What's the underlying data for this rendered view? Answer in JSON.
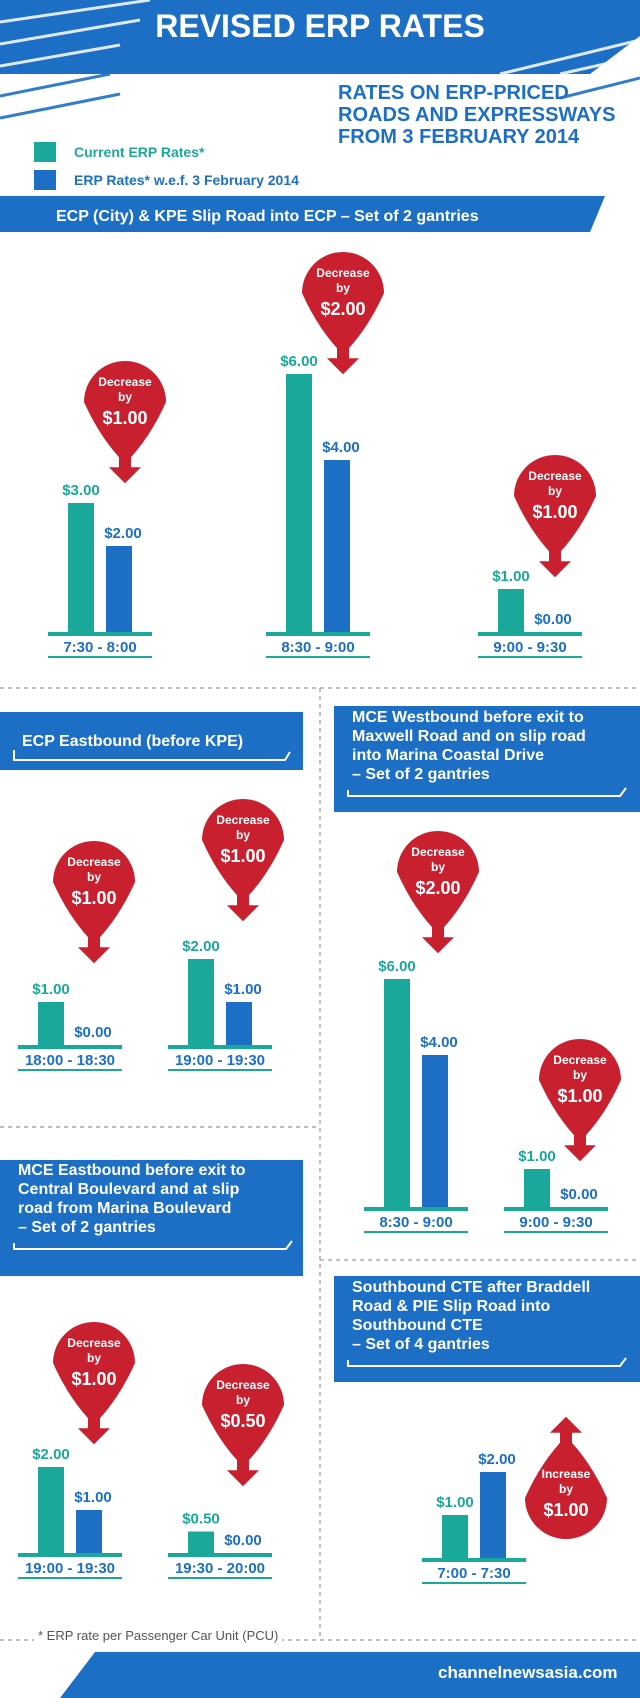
{
  "header": {
    "title": "REVISED ERP RATES",
    "subtitle_lines": [
      "RATES ON ERP-PRICED",
      "ROADS AND EXPRESSWAYS",
      "FROM 3 FEBRUARY 2014"
    ]
  },
  "legend": {
    "current": "Current ERP Rates*",
    "new": "ERP Rates* w.e.f. 3 February 2014"
  },
  "colors": {
    "current": "#1aa89b",
    "new": "#1c6fc4",
    "badge": "#c8202f",
    "banner": "#1c6fc4"
  },
  "chart_data": [
    {
      "type": "bar",
      "title": "ECP (City) & KPE Slip Road into ECP – Set of 2 gantries",
      "unit": "$",
      "categories": [
        "7:30 - 8:00",
        "8:30 - 9:00",
        "9:00 - 9:30"
      ],
      "series": [
        {
          "name": "Current ERP Rates*",
          "values": [
            3.0,
            6.0,
            1.0
          ]
        },
        {
          "name": "ERP Rates* w.e.f. 3 February 2014",
          "values": [
            2.0,
            4.0,
            0.0
          ]
        }
      ],
      "value_labels": {
        "current": [
          "$3.00",
          "$6.00",
          "$1.00"
        ],
        "new": [
          "$2.00",
          "$4.00",
          "$0.00"
        ]
      },
      "annotations": [
        {
          "text": "Decrease",
          "by": "by",
          "amount": "$1.00"
        },
        {
          "text": "Decrease",
          "by": "by",
          "amount": "$2.00"
        },
        {
          "text": "Decrease",
          "by": "by",
          "amount": "$1.00"
        }
      ]
    },
    {
      "type": "bar",
      "title": "ECP Eastbound (before KPE)",
      "unit": "$",
      "categories": [
        "18:00 - 18:30",
        "19:00 - 19:30"
      ],
      "series": [
        {
          "name": "Current ERP Rates*",
          "values": [
            1.0,
            2.0
          ]
        },
        {
          "name": "ERP Rates* w.e.f. 3 February 2014",
          "values": [
            0.0,
            1.0
          ]
        }
      ],
      "value_labels": {
        "current": [
          "$1.00",
          "$2.00"
        ],
        "new": [
          "$0.00",
          "$1.00"
        ]
      },
      "annotations": [
        {
          "text": "Decrease",
          "by": "by",
          "amount": "$1.00"
        },
        {
          "text": "Decrease",
          "by": "by",
          "amount": "$1.00"
        }
      ]
    },
    {
      "type": "bar",
      "title_lines": [
        "MCE Westbound before exit to",
        "Maxwell Road and on slip road",
        "into Marina Coastal Drive",
        "– Set of 2 gantries"
      ],
      "unit": "$",
      "categories": [
        "8:30 - 9:00",
        "9:00 - 9:30"
      ],
      "series": [
        {
          "name": "Current ERP Rates*",
          "values": [
            6.0,
            1.0
          ]
        },
        {
          "name": "ERP Rates* w.e.f. 3 February 2014",
          "values": [
            4.0,
            0.0
          ]
        }
      ],
      "value_labels": {
        "current": [
          "$6.00",
          "$1.00"
        ],
        "new": [
          "$4.00",
          "$0.00"
        ]
      },
      "annotations": [
        {
          "text": "Decrease",
          "by": "by",
          "amount": "$2.00"
        },
        {
          "text": "Decrease",
          "by": "by",
          "amount": "$1.00"
        }
      ]
    },
    {
      "type": "bar",
      "title_lines": [
        "MCE Eastbound before exit to",
        "Central Boulevard and at slip",
        "road from Marina Boulevard",
        "– Set of 2 gantries"
      ],
      "unit": "$",
      "categories": [
        "19:00 - 19:30",
        "19:30 - 20:00"
      ],
      "series": [
        {
          "name": "Current ERP Rates*",
          "values": [
            2.0,
            0.5
          ]
        },
        {
          "name": "ERP Rates* w.e.f. 3 February 2014",
          "values": [
            1.0,
            0.0
          ]
        }
      ],
      "value_labels": {
        "current": [
          "$2.00",
          "$0.50"
        ],
        "new": [
          "$1.00",
          "$0.00"
        ]
      },
      "annotations": [
        {
          "text": "Decrease",
          "by": "by",
          "amount": "$1.00"
        },
        {
          "text": "Decrease",
          "by": "by",
          "amount": "$0.50"
        }
      ]
    },
    {
      "type": "bar",
      "title_lines": [
        "Southbound CTE after Braddell",
        "Road & PIE Slip Road into",
        "Southbound CTE",
        "– Set of 4 gantries"
      ],
      "unit": "$",
      "categories": [
        "7:00 - 7:30"
      ],
      "series": [
        {
          "name": "Current ERP Rates*",
          "values": [
            1.0
          ]
        },
        {
          "name": "ERP Rates* w.e.f. 3 February 2014",
          "values": [
            2.0
          ]
        }
      ],
      "value_labels": {
        "current": [
          "$1.00"
        ],
        "new": [
          "$2.00"
        ]
      },
      "annotations": [
        {
          "text": "Increase",
          "by": "by",
          "amount": "$1.00"
        }
      ]
    }
  ],
  "footnote": "* ERP rate per Passenger Car Unit (PCU)",
  "source": "channelnewsasia.com"
}
